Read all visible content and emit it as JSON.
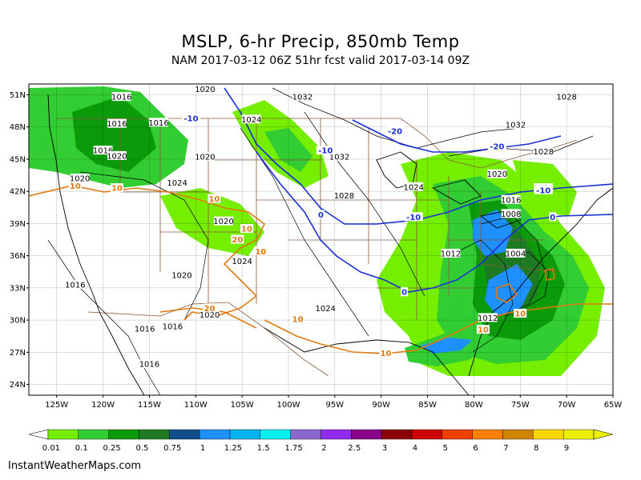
{
  "header": {
    "title": "MSLP, 6-hr Precip, 850mb Temp",
    "subtitle": "NAM 2017-03-12 06Z 51hr fcst valid 2017-03-14 09Z"
  },
  "axes": {
    "lat_labels": [
      "51N",
      "48N",
      "45N",
      "42N",
      "39N",
      "36N",
      "33N",
      "30N",
      "27N",
      "24N"
    ],
    "lon_labels": [
      "125W",
      "120W",
      "115W",
      "110W",
      "105W",
      "100W",
      "95W",
      "90W",
      "85W",
      "80W",
      "75W",
      "70W",
      "65W"
    ]
  },
  "isobar_labels": [
    {
      "text": "1016",
      "lon": -118,
      "lat": 50.8
    },
    {
      "text": "1016",
      "lon": -118.5,
      "lat": 48.3
    },
    {
      "text": "1016",
      "lon": -114,
      "lat": 48.4
    },
    {
      "text": "1016",
      "lon": -120,
      "lat": 45.8
    },
    {
      "text": "1020",
      "lon": -118.5,
      "lat": 45.3
    },
    {
      "text": "1020",
      "lon": -122.5,
      "lat": 43.2
    },
    {
      "text": "1020",
      "lon": -109,
      "lat": 45.2
    },
    {
      "text": "1024",
      "lon": -112,
      "lat": 42.8
    },
    {
      "text": "1020",
      "lon": -107,
      "lat": 39.2
    },
    {
      "text": "1024",
      "lon": -105,
      "lat": 35.5
    },
    {
      "text": "1020",
      "lon": -111.5,
      "lat": 34.2
    },
    {
      "text": "1016",
      "lon": -123,
      "lat": 33.3
    },
    {
      "text": "1016",
      "lon": -115.5,
      "lat": 29.2
    },
    {
      "text": "1016",
      "lon": -112.5,
      "lat": 29.4
    },
    {
      "text": "1016",
      "lon": -115,
      "lat": 25.9
    },
    {
      "text": "1020",
      "lon": -108.5,
      "lat": 30.5
    },
    {
      "text": "1020",
      "lon": -109,
      "lat": 51.5
    },
    {
      "text": "1024",
      "lon": -104,
      "lat": 48.7
    },
    {
      "text": "1032",
      "lon": -98.5,
      "lat": 50.8
    },
    {
      "text": "1032",
      "lon": -94.5,
      "lat": 45.2
    },
    {
      "text": "1028",
      "lon": -94,
      "lat": 41.6
    },
    {
      "text": "1024",
      "lon": -86.5,
      "lat": 42.4
    },
    {
      "text": "1024",
      "lon": -96,
      "lat": 31.1
    },
    {
      "text": "1012",
      "lon": -82.5,
      "lat": 36.2
    },
    {
      "text": "1032",
      "lon": -75.5,
      "lat": 48.2
    },
    {
      "text": "1028",
      "lon": -70,
      "lat": 50.8
    },
    {
      "text": "1028",
      "lon": -72.5,
      "lat": 45.7
    },
    {
      "text": "1020",
      "lon": -77.5,
      "lat": 43.6
    },
    {
      "text": "1024",
      "lon": -72.5,
      "lat": 42.3
    },
    {
      "text": "1016",
      "lon": -76,
      "lat": 41.2
    },
    {
      "text": "1008",
      "lon": -76,
      "lat": 39.9
    },
    {
      "text": "1004",
      "lon": -75.5,
      "lat": 36.2
    },
    {
      "text": "1012",
      "lon": -78.5,
      "lat": 30.2
    }
  ],
  "temp_labels": [
    {
      "text": "-10",
      "lon": -110.5,
      "lat": 48.8,
      "color": "#1a2fd6"
    },
    {
      "text": "-20",
      "lon": -88.5,
      "lat": 47.6,
      "color": "#1a2fd6"
    },
    {
      "text": "-20",
      "lon": -77.5,
      "lat": 46.2,
      "color": "#1a2fd6"
    },
    {
      "text": "-10",
      "lon": -96,
      "lat": 45.8,
      "color": "#1a2fd6"
    },
    {
      "text": "-10",
      "lon": -72.5,
      "lat": 42.1,
      "color": "#1a2fd6"
    },
    {
      "text": "-10",
      "lon": -86.5,
      "lat": 39.6,
      "color": "#1a2fd6"
    },
    {
      "text": "0",
      "lon": -96.5,
      "lat": 39.8,
      "color": "#1a2fd6"
    },
    {
      "text": "0",
      "lon": -71.5,
      "lat": 39.6,
      "color": "#1a2fd6"
    },
    {
      "text": "0",
      "lon": -87.5,
      "lat": 32.6,
      "color": "#1a2fd6"
    },
    {
      "text": "10",
      "lon": -123,
      "lat": 42.5,
      "color": "#e07a10"
    },
    {
      "text": "10",
      "lon": -118.5,
      "lat": 42.3,
      "color": "#e07a10"
    },
    {
      "text": "10",
      "lon": -108,
      "lat": 41.3,
      "color": "#e07a10"
    },
    {
      "text": "10",
      "lon": -104.5,
      "lat": 38.5,
      "color": "#e07a10"
    },
    {
      "text": "20",
      "lon": -105.5,
      "lat": 37.5,
      "color": "#e07a10"
    },
    {
      "text": "10",
      "lon": -103,
      "lat": 36.4,
      "color": "#e07a10"
    },
    {
      "text": "20",
      "lon": -108.5,
      "lat": 31.1,
      "color": "#e07a10"
    },
    {
      "text": "10",
      "lon": -99,
      "lat": 30.1,
      "color": "#e07a10"
    },
    {
      "text": "10",
      "lon": -89.5,
      "lat": 26.9,
      "color": "#e07a10"
    },
    {
      "text": "10",
      "lon": -79,
      "lat": 29.1,
      "color": "#e07a10"
    },
    {
      "text": "10",
      "lon": -75,
      "lat": 30.6,
      "color": "#e07a10"
    }
  ],
  "colorbar": {
    "labels": [
      "0.01",
      "0.1",
      "0.25",
      "0.5",
      "0.75",
      "1",
      "1.25",
      "1.5",
      "1.75",
      "2",
      "2.5",
      "3",
      "4",
      "5",
      "6",
      "7",
      "8",
      "9"
    ],
    "colors": [
      "#76ee00",
      "#32cd32",
      "#0a9a0a",
      "#1e7a22",
      "#104e8b",
      "#1e90ff",
      "#00b2ee",
      "#00eeee",
      "#8968cd",
      "#912cee",
      "#8b008b",
      "#8b0000",
      "#cd0000",
      "#ee4000",
      "#ff7f00",
      "#cd8500",
      "#ffd700",
      "#eeee00"
    ]
  },
  "footer": "InstantWeatherMaps.com"
}
